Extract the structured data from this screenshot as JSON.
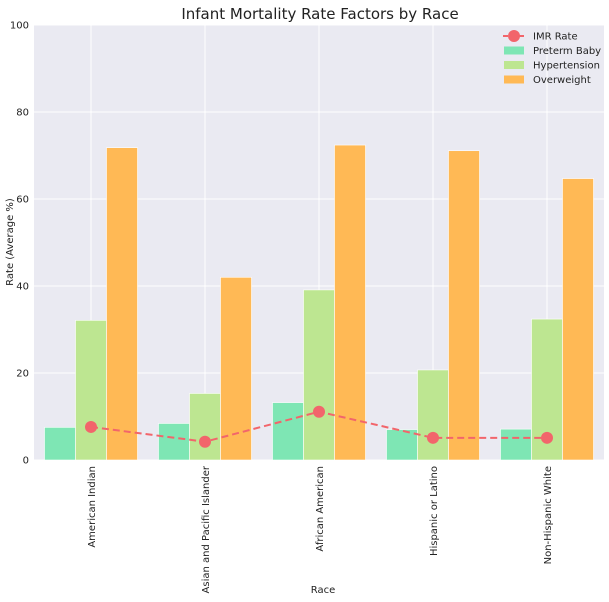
{
  "chart_data": {
    "type": "bar",
    "title": "Infant Mortality Rate Factors by Race",
    "xlabel": "Race",
    "ylabel": "Rate (Average %)",
    "ylim": [
      0,
      100
    ],
    "yticks": [
      0,
      20,
      40,
      60,
      80,
      100
    ],
    "grid": true,
    "legend_position": "top-right",
    "categories": [
      "American Indian",
      "Asian and Pacific Islander",
      "African American",
      "Hispanic or Latino",
      "Non-Hispanic White"
    ],
    "series": [
      {
        "name": "Preterm Baby",
        "kind": "bar",
        "color": "#7ee6b4",
        "values": [
          7.5,
          8.4,
          13.2,
          7.0,
          7.1
        ]
      },
      {
        "name": "Hypertension",
        "kind": "bar",
        "color": "#bde691",
        "values": [
          32.1,
          15.3,
          39.1,
          20.7,
          32.4
        ]
      },
      {
        "name": "Overweight",
        "kind": "bar",
        "color": "#ffb955",
        "values": [
          71.8,
          42.0,
          72.4,
          71.1,
          64.7
        ]
      },
      {
        "name": "IMR Rate",
        "kind": "line",
        "color": "#f2656b",
        "values": [
          7.6,
          4.2,
          11.1,
          5.1,
          5.1
        ]
      }
    ],
    "background": "#eaeaf2"
  }
}
